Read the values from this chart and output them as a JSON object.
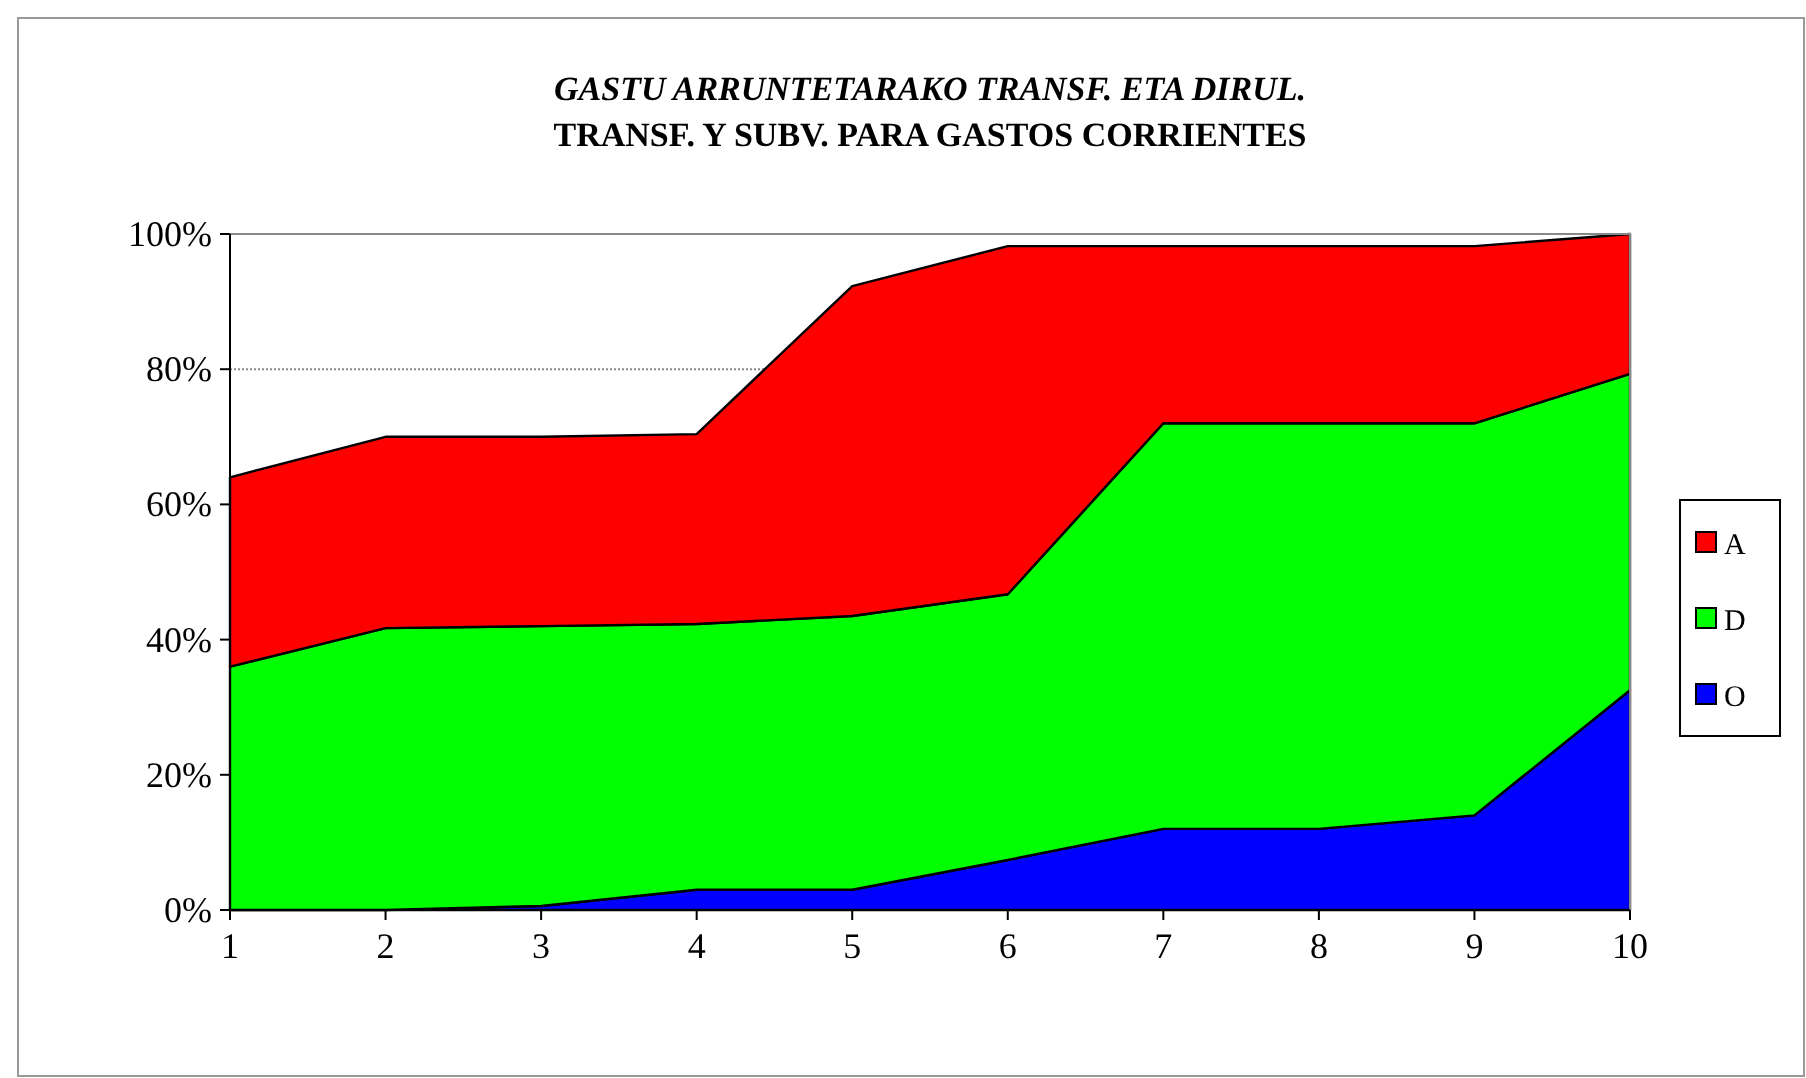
{
  "chart_data": {
    "type": "area",
    "stacked": true,
    "title": "GASTU ARRUNTETARAKO TRANSF. ETA DIRUL.",
    "subtitle": "TRANSF. Y SUBV. PARA GASTOS CORRIENTES",
    "x": [
      1,
      2,
      3,
      4,
      5,
      6,
      7,
      8,
      9,
      10
    ],
    "xlim": [
      1,
      10
    ],
    "xticks": [
      1,
      2,
      3,
      4,
      5,
      6,
      7,
      8,
      9,
      10
    ],
    "ylim": [
      0,
      100
    ],
    "yticks": [
      {
        "value": 0,
        "label": "0%"
      },
      {
        "value": 20,
        "label": "20%"
      },
      {
        "value": 40,
        "label": "40%"
      },
      {
        "value": 60,
        "label": "60%"
      },
      {
        "value": 80,
        "label": "80%"
      },
      {
        "value": 100,
        "label": "100%"
      }
    ],
    "grid": "y",
    "legend": "right",
    "series": [
      {
        "name": "O",
        "color": "#0000ff",
        "values": [
          0,
          0,
          0.6,
          3,
          3,
          7.4,
          12,
          12,
          14,
          32.5
        ]
      },
      {
        "name": "D",
        "color": "#00ff00",
        "values": [
          36,
          41.7,
          41.4,
          39.3,
          40.5,
          39.3,
          60,
          60,
          58,
          46.8
        ]
      },
      {
        "name": "A",
        "color": "#ff0000",
        "values": [
          28,
          28.3,
          28,
          28.1,
          48.8,
          51.5,
          26.2,
          26.2,
          26.2,
          20.7
        ]
      }
    ]
  }
}
